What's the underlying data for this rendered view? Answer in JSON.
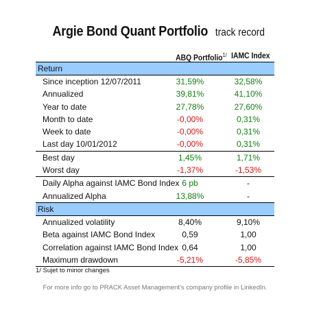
{
  "title": {
    "main": "Argie Bond Quant Portfolio",
    "sub": "track record"
  },
  "columns": {
    "portfolio": "ABQ Portfolio",
    "portfolio_note": "1/",
    "index": "IAMC Index"
  },
  "sections": [
    {
      "label": "Return",
      "groups": [
        [
          {
            "label": "Since inception 12/07/2011",
            "v1": "31,59%",
            "v1_color": "green",
            "v2": "32,58%",
            "v2_color": "green"
          },
          {
            "label": "Annualized",
            "v1": "39,81%",
            "v1_color": "green",
            "v2": "41,10%",
            "v2_color": "green"
          },
          {
            "label": "Year to date",
            "v1": "27,78%",
            "v1_color": "green",
            "v2": "27,60%",
            "v2_color": "green"
          },
          {
            "label": "Month to date",
            "v1": "-0,00%",
            "v1_color": "red",
            "v2": "0,31%",
            "v2_color": "green"
          },
          {
            "label": "Week to date",
            "v1": "-0,00%",
            "v1_color": "red",
            "v2": "0,31%",
            "v2_color": "green"
          },
          {
            "label": "Last day 10/01/2012",
            "v1": "-0,00%",
            "v1_color": "red",
            "v2": "0,31%",
            "v2_color": "green"
          }
        ],
        [
          {
            "label": "Best day",
            "v1": "1,45%",
            "v1_color": "green",
            "v2": "1,71%",
            "v2_color": "green"
          },
          {
            "label": "Worst day",
            "v1": "-1,37%",
            "v1_color": "red",
            "v2": "-1,53%",
            "v2_color": "red"
          }
        ],
        [
          {
            "label": "Daily Alpha against IAMC Bond Index",
            "v1": "6 pb",
            "v1_color": "green",
            "v2": "-",
            "v2_color": "black"
          },
          {
            "label": "Annualized Alpha",
            "v1": "13,88%",
            "v1_color": "green",
            "v2": "-",
            "v2_color": "black"
          }
        ]
      ]
    },
    {
      "label": "Risk",
      "groups": [
        [
          {
            "label": "Annualized volatility",
            "v1": "8,40%",
            "v1_color": "black",
            "v2": "9,10%",
            "v2_color": "black"
          },
          {
            "label": "Beta against IAMC Bond Index",
            "v1": "0,59",
            "v1_color": "black",
            "v2": "1,00",
            "v2_color": "black"
          },
          {
            "label": "Correlation against IAMC Bond Index",
            "v1": "0,64",
            "v1_color": "black",
            "v2": "1,00",
            "v2_color": "black"
          },
          {
            "label": "Maximum drawdown",
            "v1": "-5,21%",
            "v1_color": "red",
            "v2": "-5,85%",
            "v2_color": "red"
          }
        ]
      ]
    }
  ],
  "footnote": "1/ Sujet to minor changes",
  "more_info": "For more info go to PRACK Asset Management's company profile in LinkedIn.",
  "colors": {
    "section_bg": "#99ccff",
    "positive": "#108010",
    "negative": "#d41414"
  }
}
